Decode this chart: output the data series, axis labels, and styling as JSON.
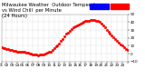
{
  "bg_color": "#ffffff",
  "line_color": "#ff0000",
  "grid_color": "#aaaaaa",
  "y_min": -10,
  "y_max": 50,
  "y_ticks": [
    -10,
    0,
    10,
    20,
    30,
    40,
    50
  ],
  "legend_temp_color": "#ff0000",
  "legend_wc_color": "#0000ff",
  "temp_x": [
    0,
    20,
    40,
    60,
    80,
    100,
    120,
    140,
    160,
    180,
    200,
    220,
    240,
    260,
    280,
    300,
    320,
    340,
    360,
    380,
    400,
    420,
    440,
    460,
    480,
    500,
    520,
    540,
    560,
    580,
    600,
    620,
    640,
    660,
    680,
    700,
    720,
    740,
    760,
    780,
    800,
    820,
    840,
    860,
    880,
    900,
    920,
    940,
    960,
    980,
    1000,
    1020,
    1040,
    1060,
    1080,
    1100,
    1120,
    1140,
    1160,
    1180,
    1200,
    1220,
    1240,
    1260,
    1280,
    1300,
    1320,
    1340,
    1360,
    1380,
    1400,
    1420,
    1440
  ],
  "temp_y": [
    8,
    7.5,
    7,
    6.5,
    6,
    5,
    4.5,
    4,
    3.5,
    3,
    2.5,
    2,
    2.5,
    2,
    1.5,
    1,
    0.5,
    0,
    -0.5,
    -1,
    -1.5,
    -2,
    -1.5,
    -1,
    -0.5,
    0,
    1,
    2,
    3,
    5,
    7,
    9,
    11,
    13,
    16,
    19,
    22,
    25,
    27,
    29,
    31,
    33,
    35,
    36,
    37,
    38,
    39,
    40,
    41,
    41.5,
    42,
    42.5,
    43,
    42.5,
    42,
    41,
    40,
    38.5,
    36,
    33,
    30,
    28,
    25,
    23,
    21,
    19,
    16,
    14,
    12,
    10,
    8,
    6,
    5
  ],
  "x_ticks_pos": [
    0,
    60,
    120,
    180,
    240,
    300,
    360,
    420,
    480,
    540,
    600,
    660,
    720,
    780,
    840,
    900,
    960,
    1020,
    1080,
    1140,
    1200,
    1260,
    1320,
    1380,
    1440
  ],
  "x_tick_labels": [
    "01",
    "02",
    "03",
    "04",
    "05",
    "06",
    "07",
    "08",
    "09",
    "10",
    "11",
    "12",
    "13",
    "14",
    "15",
    "16",
    "17",
    "18",
    "19",
    "20",
    "21",
    "22",
    "23",
    "24",
    ""
  ],
  "title_fontsize": 3.8,
  "tick_fontsize": 3.0
}
